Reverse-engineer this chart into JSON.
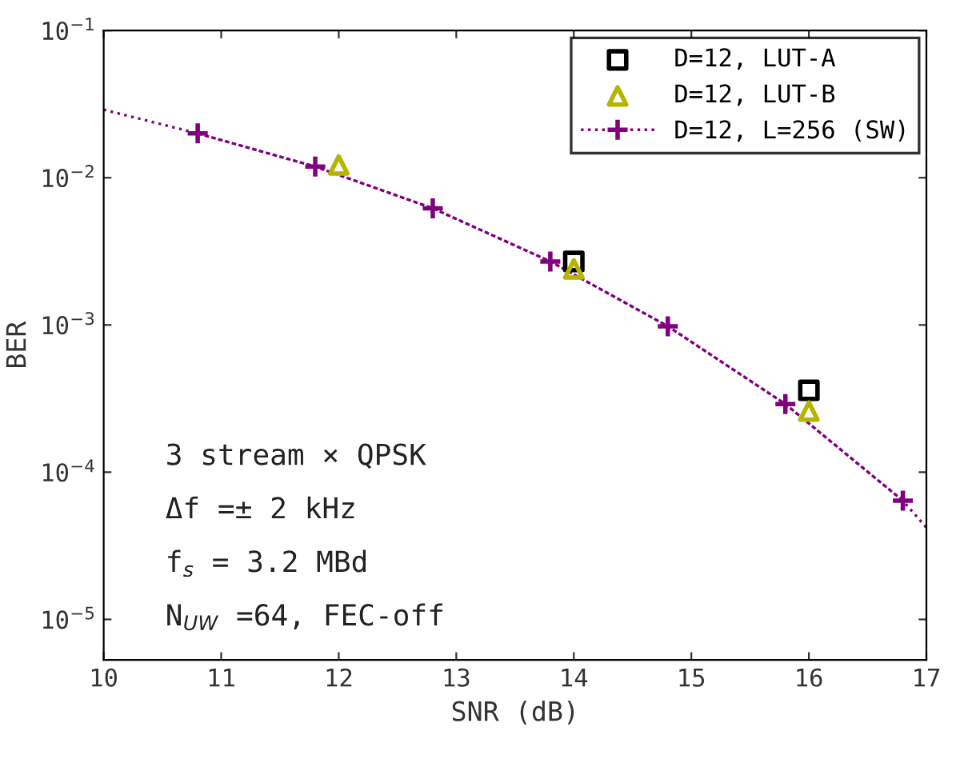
{
  "chart_data": {
    "type": "line",
    "xlabel": "SNR (dB)",
    "ylabel": "BER",
    "log": "y",
    "xlim": [
      10,
      17
    ],
    "xticks": [
      10,
      11,
      12,
      13,
      14,
      15,
      16,
      17
    ],
    "ylim": [
      5.3e-06,
      0.1
    ],
    "yticks": [
      {
        "value": 0.1,
        "label": "10$^{−1}$"
      },
      {
        "value": 0.01,
        "label": "10$^{−2}$"
      },
      {
        "value": 0.001,
        "label": "10$^{−3}$"
      },
      {
        "value": 0.0001,
        "label": "10$^{−4}$"
      },
      {
        "value": 1e-05,
        "label": "10$^{−5}$"
      }
    ],
    "legend": "top right",
    "grid": false,
    "series": [
      {
        "name": "D=12, LUT-A",
        "type": "scatter",
        "marker": "square",
        "color": "#000000",
        "x": [
          14,
          16
        ],
        "values": [
          0.0027,
          0.00036
        ]
      },
      {
        "name": "D=12, LUT-B",
        "type": "scatter",
        "marker": "triangle",
        "color": "#b5b500",
        "x": [
          12,
          14,
          16
        ],
        "values": [
          0.0122,
          0.0024,
          0.00026
        ]
      },
      {
        "name": "D=12, L=256 (SW)",
        "marker": "cross",
        "line_style": "dotted",
        "color": "#800080",
        "x": [
          10.8,
          11.8,
          12.8,
          13.8,
          14.8,
          15.8,
          16.8
        ],
        "values": [
          0.02,
          0.0119,
          0.0062,
          0.0027,
          0.00098,
          0.00029,
          6.4e-05
        ]
      },
      {
        "marker": "none",
        "line_style": "dotted",
        "color": "#800080",
        "x": [
          10,
          10.8,
          11.8,
          12.8,
          13.8,
          14.8,
          15.8,
          16.8,
          17
        ],
        "values": [
          0.029,
          0.02,
          0.0119,
          0.0062,
          0.0027,
          0.00098,
          0.00029,
          6.4e-05,
          4.2e-05
        ]
      }
    ],
    "annotations": [
      "3 stream × QPSK",
      "Δf =± 2 kHz",
      "f$_{s}$ = 3.2 MBd",
      "N$_{UW}$ =64, FEC-off"
    ]
  }
}
